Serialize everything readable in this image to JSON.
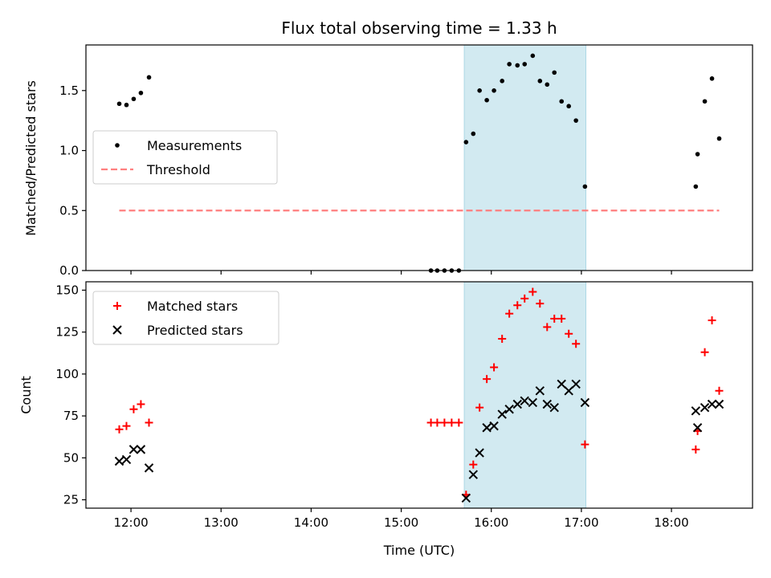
{
  "figure": {
    "title": "Flux total observing time = 1.33 h"
  },
  "chart_data": [
    {
      "type": "scatter",
      "ylabel": "Matched/Predicted stars",
      "ylim": [
        0,
        1.88
      ],
      "yticks": [
        0.0,
        0.5,
        1.0,
        1.5
      ],
      "ytick_labels": [
        "0.0",
        "0.5",
        "1.0",
        "1.5"
      ],
      "xlim_hours": [
        11.5,
        18.9
      ],
      "shaded_span_hours": [
        15.7,
        17.05
      ],
      "shaded_color": "#add8e6",
      "legend_position": "center-left",
      "series": [
        {
          "name": "Measurements",
          "marker": "dot",
          "color": "#000000",
          "points": [
            [
              11.87,
              1.39
            ],
            [
              11.95,
              1.38
            ],
            [
              12.03,
              1.43
            ],
            [
              12.11,
              1.48
            ],
            [
              12.2,
              1.61
            ],
            [
              15.33,
              0.0
            ],
            [
              15.4,
              0.0
            ],
            [
              15.48,
              0.0
            ],
            [
              15.56,
              0.0
            ],
            [
              15.64,
              0.0
            ],
            [
              15.72,
              1.07
            ],
            [
              15.8,
              1.14
            ],
            [
              15.87,
              1.5
            ],
            [
              15.95,
              1.42
            ],
            [
              16.03,
              1.5
            ],
            [
              16.12,
              1.58
            ],
            [
              16.2,
              1.72
            ],
            [
              16.29,
              1.71
            ],
            [
              16.37,
              1.72
            ],
            [
              16.46,
              1.79
            ],
            [
              16.54,
              1.58
            ],
            [
              16.62,
              1.55
            ],
            [
              16.7,
              1.65
            ],
            [
              16.78,
              1.41
            ],
            [
              16.86,
              1.37
            ],
            [
              16.94,
              1.25
            ],
            [
              17.04,
              0.7
            ],
            [
              18.27,
              0.7
            ],
            [
              18.29,
              0.97
            ],
            [
              18.37,
              1.41
            ],
            [
              18.45,
              1.6
            ],
            [
              18.53,
              1.1
            ]
          ]
        },
        {
          "name": "Threshold",
          "marker": "dashed-line",
          "color": "#ff7f7f",
          "points": [
            [
              11.87,
              0.5
            ],
            [
              18.53,
              0.5
            ]
          ]
        }
      ]
    },
    {
      "type": "scatter",
      "xlabel": "Time (UTC)",
      "ylabel": "Count",
      "ylim": [
        20,
        155
      ],
      "yticks": [
        25,
        50,
        75,
        100,
        125,
        150
      ],
      "ytick_labels": [
        "25",
        "50",
        "75",
        "100",
        "125",
        "150"
      ],
      "xlim_hours": [
        11.5,
        18.9
      ],
      "xticks_hours": [
        12,
        13,
        14,
        15,
        16,
        17,
        18
      ],
      "xtick_labels": [
        "12:00",
        "13:00",
        "14:00",
        "15:00",
        "16:00",
        "17:00",
        "18:00"
      ],
      "shaded_span_hours": [
        15.7,
        17.05
      ],
      "shaded_color": "#add8e6",
      "legend_position": "upper-left",
      "series": [
        {
          "name": "Matched stars",
          "marker": "plus",
          "color": "#ff0000",
          "points": [
            [
              11.87,
              67
            ],
            [
              11.95,
              69
            ],
            [
              12.03,
              79
            ],
            [
              12.11,
              82
            ],
            [
              12.2,
              71
            ],
            [
              15.33,
              71
            ],
            [
              15.4,
              71
            ],
            [
              15.48,
              71
            ],
            [
              15.56,
              71
            ],
            [
              15.64,
              71
            ],
            [
              15.72,
              28
            ],
            [
              15.8,
              46
            ],
            [
              15.87,
              80
            ],
            [
              15.95,
              97
            ],
            [
              16.03,
              104
            ],
            [
              16.12,
              121
            ],
            [
              16.2,
              136
            ],
            [
              16.29,
              141
            ],
            [
              16.37,
              145
            ],
            [
              16.46,
              149
            ],
            [
              16.54,
              142
            ],
            [
              16.62,
              128
            ],
            [
              16.7,
              133
            ],
            [
              16.78,
              133
            ],
            [
              16.86,
              124
            ],
            [
              16.94,
              118
            ],
            [
              17.04,
              58
            ],
            [
              18.27,
              55
            ],
            [
              18.29,
              66
            ],
            [
              18.37,
              113
            ],
            [
              18.45,
              132
            ],
            [
              18.53,
              90
            ]
          ]
        },
        {
          "name": "Predicted stars",
          "marker": "x",
          "color": "#000000",
          "points": [
            [
              11.87,
              48
            ],
            [
              11.95,
              49
            ],
            [
              12.03,
              55
            ],
            [
              12.11,
              55
            ],
            [
              12.2,
              44
            ],
            [
              15.72,
              26
            ],
            [
              15.8,
              40
            ],
            [
              15.87,
              53
            ],
            [
              15.95,
              68
            ],
            [
              16.03,
              69
            ],
            [
              16.12,
              76
            ],
            [
              16.2,
              79
            ],
            [
              16.29,
              82
            ],
            [
              16.37,
              84
            ],
            [
              16.46,
              83
            ],
            [
              16.54,
              90
            ],
            [
              16.62,
              82
            ],
            [
              16.7,
              80
            ],
            [
              16.78,
              94
            ],
            [
              16.86,
              90
            ],
            [
              16.94,
              94
            ],
            [
              17.04,
              83
            ],
            [
              18.27,
              78
            ],
            [
              18.29,
              68
            ],
            [
              18.37,
              80
            ],
            [
              18.45,
              82
            ],
            [
              18.53,
              82
            ]
          ]
        }
      ]
    }
  ]
}
